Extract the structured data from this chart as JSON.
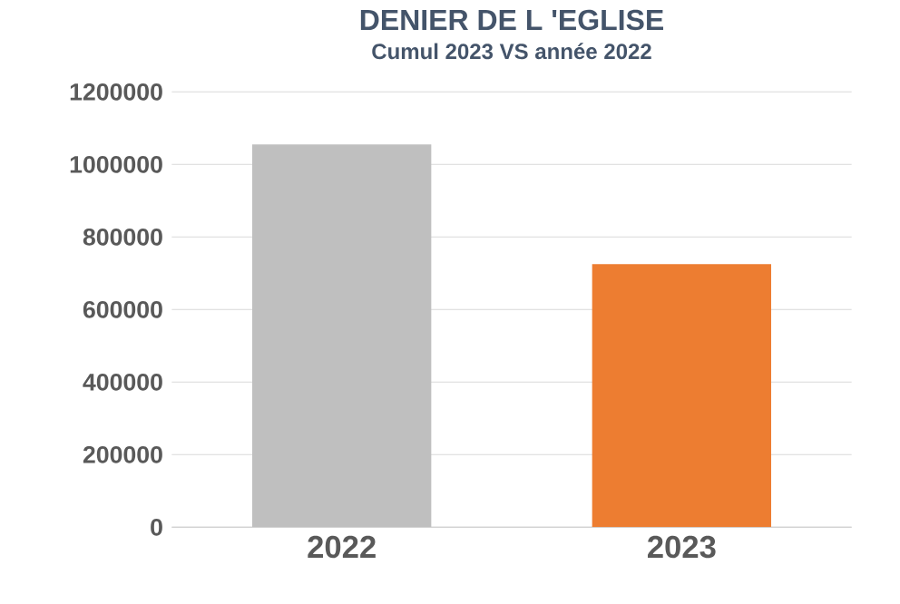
{
  "chart_data": {
    "type": "bar",
    "title": "DENIER DE L 'EGLISE",
    "subtitle": "Cumul 2023 VS année 2022",
    "categories": [
      "2022",
      "2023"
    ],
    "values": [
      1055000,
      725000
    ],
    "colors": [
      "#bfbfbf",
      "#ed7d31"
    ],
    "ylim": [
      0,
      1200000
    ],
    "yticks": [
      0,
      200000,
      400000,
      600000,
      800000,
      1000000,
      1200000
    ],
    "grid": "y"
  }
}
